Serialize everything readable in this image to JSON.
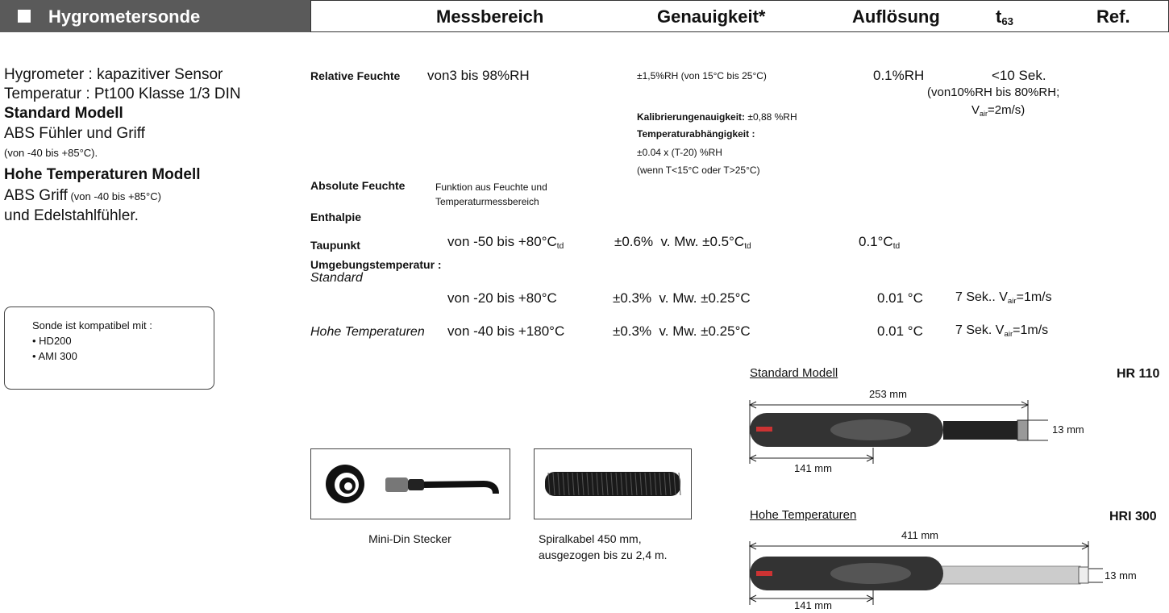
{
  "header": {
    "title": "Hygrometersonde",
    "columns": {
      "range": "Messbereich",
      "accuracy": "Genauigkeit*",
      "resolution": "Auflösung",
      "t63": {
        "text": "t",
        "sub": "63"
      },
      "ref": "Ref."
    }
  },
  "description": {
    "sensor": "Hygrometer : kapazitiver Sensor",
    "temperature": "Temperatur : Pt100 Klasse 1/3 DIN",
    "standard": {
      "title": "Standard Modell",
      "material": "ABS Fühler und Griff",
      "range": "(von -40 bis +85°C)."
    },
    "high_temp": {
      "title": "Hohe Temperaturen Modell",
      "material": "ABS Griff",
      "range": " (von -40 bis +85°C)",
      "probe": "und Edelstahlfühler."
    }
  },
  "compatibility": {
    "title": "Sonde ist kompatibel mit :",
    "items": [
      "• HD200",
      "• AMI 300"
    ]
  },
  "rows": [
    {
      "label": "Relative Feuchte",
      "range": "von3 bis 98%RH",
      "accuracy": {
        "main": "±1,5%RH (von 15°C bis 25°C)",
        "calibration_label": "Kalibrierungenauigkeit:",
        "calibration_value": " ±0,88 %RH",
        "temp_label": "Temperaturabhängigkeit :",
        "temp_formula": "±0.04 x (T-20) %RH",
        "temp_condition": "(wenn T<15°C oder T>25°C)"
      },
      "resolution": "0.1%RH",
      "t63": {
        "time": "<10 Sek.",
        "condition": "(von10%RH bis 80%RH;",
        "air": {
          "text": "V",
          "sub": "air",
          "after": "=2m/s)"
        }
      }
    },
    {
      "label": "Absolute Feuchte",
      "range": [
        "Funktion aus Feuchte und",
        "Temperaturmessbereich"
      ]
    },
    {
      "label": "Enthalpie"
    },
    {
      "label": "Taupunkt",
      "range": {
        "text": "von -50 bis +80°C",
        "sub": "td"
      },
      "accuracy": {
        "text": "±0.6%  v. Mw. ±0.5°C",
        "sub": "td"
      },
      "resolution": {
        "text": "0.1°C",
        "sub": "td"
      }
    },
    {
      "label": "Umgebungstemperatur :"
    },
    {
      "label": "Standard",
      "range": "von -20 bis +80°C",
      "accuracy": "±0.3%  v. Mw. ±0.25°C",
      "resolution": "0.01 °C",
      "t63": {
        "text": "7 Sek.. V",
        "sub": "air",
        "after": "=1m/s"
      }
    },
    {
      "label": "Hohe Temperaturen",
      "range": "von -40 bis +180°C",
      "accuracy": "±0.3%  v. Mw. ±0.25°C",
      "resolution": "0.01 °C",
      "t63": {
        "text": "7 Sek. V",
        "sub": "air",
        "after": "=1m/s"
      }
    }
  ],
  "accessories": [
    {
      "caption": [
        "Mini-Din Stecker"
      ]
    },
    {
      "caption": [
        "Spiralkabel 450 mm,",
        "ausgezogen bis zu 2,4 m."
      ]
    }
  ],
  "models": [
    {
      "name": "Standard Modell",
      "ref": "HR 110",
      "length": "253 mm",
      "diameter": "13 mm",
      "handle": "141 mm"
    },
    {
      "name": "Hohe Temperaturen",
      "ref": "HRI 300",
      "length": "411 mm",
      "diameter": "13 mm",
      "handle": "141 mm"
    }
  ]
}
